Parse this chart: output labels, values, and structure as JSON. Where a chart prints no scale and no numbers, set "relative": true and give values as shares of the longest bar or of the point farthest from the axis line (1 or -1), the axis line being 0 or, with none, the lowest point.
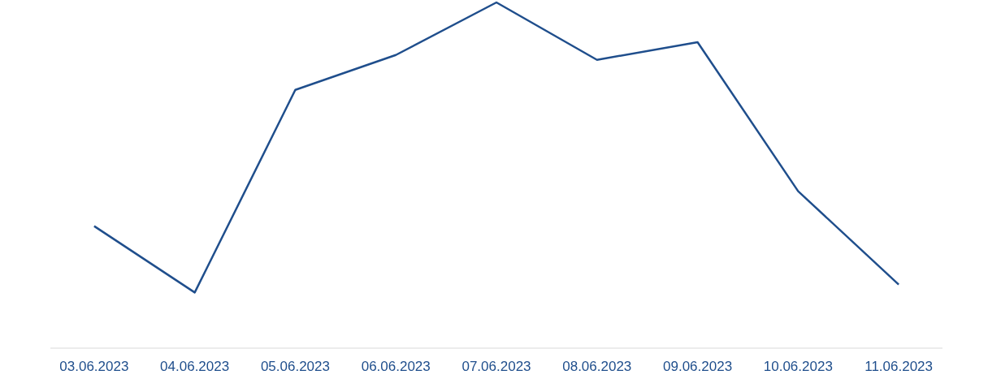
{
  "chart_data": {
    "type": "line",
    "relative": true,
    "categories": [
      "03.06.2023",
      "04.06.2023",
      "05.06.2023",
      "06.06.2023",
      "07.06.2023",
      "08.06.2023",
      "09.06.2023",
      "10.06.2023",
      "11.06.2023"
    ],
    "series": [
      {
        "color": "#1f4e8c",
        "values": [
          0.353,
          0.161,
          0.747,
          0.848,
          1,
          0.834,
          0.885,
          0.454,
          0.184
        ]
      }
    ],
    "marker": "none",
    "line_style": "solid"
  }
}
